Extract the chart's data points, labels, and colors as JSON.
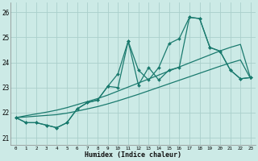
{
  "xlabel": "Humidex (Indice chaleur)",
  "background_color": "#cceae6",
  "grid_color": "#aacfcb",
  "line_color": "#1a7a6e",
  "xlim": [
    -0.5,
    23.5
  ],
  "ylim": [
    20.7,
    26.4
  ],
  "yticks": [
    21,
    22,
    23,
    24,
    25,
    26
  ],
  "xticks": [
    0,
    1,
    2,
    3,
    4,
    5,
    6,
    7,
    8,
    9,
    10,
    11,
    12,
    13,
    14,
    15,
    16,
    17,
    18,
    19,
    20,
    21,
    22,
    23
  ],
  "series1": [
    21.8,
    21.6,
    21.6,
    21.5,
    21.4,
    21.6,
    22.15,
    22.4,
    22.5,
    23.05,
    23.55,
    24.85,
    23.1,
    23.8,
    23.3,
    23.7,
    23.8,
    25.8,
    25.75,
    24.6,
    24.45,
    23.7,
    23.35,
    23.4
  ],
  "series2": [
    21.8,
    21.6,
    21.6,
    21.5,
    21.4,
    21.6,
    22.15,
    22.4,
    22.5,
    23.05,
    23.0,
    24.85,
    23.7,
    23.3,
    23.8,
    24.75,
    24.95,
    25.8,
    25.75,
    24.6,
    24.45,
    23.7,
    23.35,
    23.4
  ],
  "trend1": [
    21.8,
    21.88,
    21.95,
    22.02,
    22.1,
    22.2,
    22.32,
    22.44,
    22.56,
    22.7,
    22.86,
    23.02,
    23.18,
    23.34,
    23.5,
    23.66,
    23.82,
    23.98,
    24.14,
    24.3,
    24.46,
    24.6,
    24.72,
    23.35
  ],
  "trend2": [
    21.8,
    21.83,
    21.86,
    21.89,
    21.92,
    21.98,
    22.06,
    22.15,
    22.24,
    22.35,
    22.47,
    22.6,
    22.73,
    22.87,
    23.01,
    23.15,
    23.29,
    23.43,
    23.57,
    23.71,
    23.85,
    23.98,
    24.1,
    23.35
  ]
}
